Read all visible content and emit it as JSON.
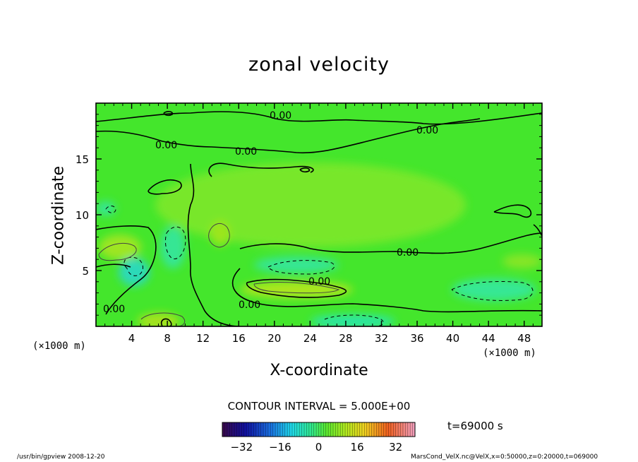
{
  "chart_data": {
    "type": "heatmap",
    "title": "zonal velocity",
    "xlabel": "X-coordinate",
    "ylabel": "Z-coordinate",
    "x_unit": "(×1000 m)",
    "y_unit": "(×1000 m)",
    "xlim": [
      0,
      50
    ],
    "ylim": [
      0,
      20
    ],
    "x_ticks": [
      4,
      8,
      12,
      16,
      20,
      24,
      28,
      32,
      36,
      40,
      44,
      48
    ],
    "y_ticks": [
      5,
      10,
      15
    ],
    "contour_interval_text": "CONTOUR INTERVAL = 5.000E+00",
    "contour_labels": [
      "0.00",
      "0.00",
      "0.00",
      "0.00",
      "0.00",
      "0.00",
      "0.00",
      "0.00"
    ],
    "colorbar": {
      "range": [
        -40,
        40
      ],
      "ticks": [
        -32,
        -16,
        0,
        16,
        32
      ]
    },
    "time_text": "t=69000 s",
    "grid": false
  },
  "footer": {
    "left": "/usr/bin/gpview   2008-12-20",
    "right": "MarsCond_VelX.nc@VelX,x=0:50000,z=0:20000,t=069000"
  },
  "colors": {
    "field_base": "#44e62c",
    "positive": "#a4e61c",
    "negative": "#2ee8a0",
    "contour": "#000000"
  }
}
